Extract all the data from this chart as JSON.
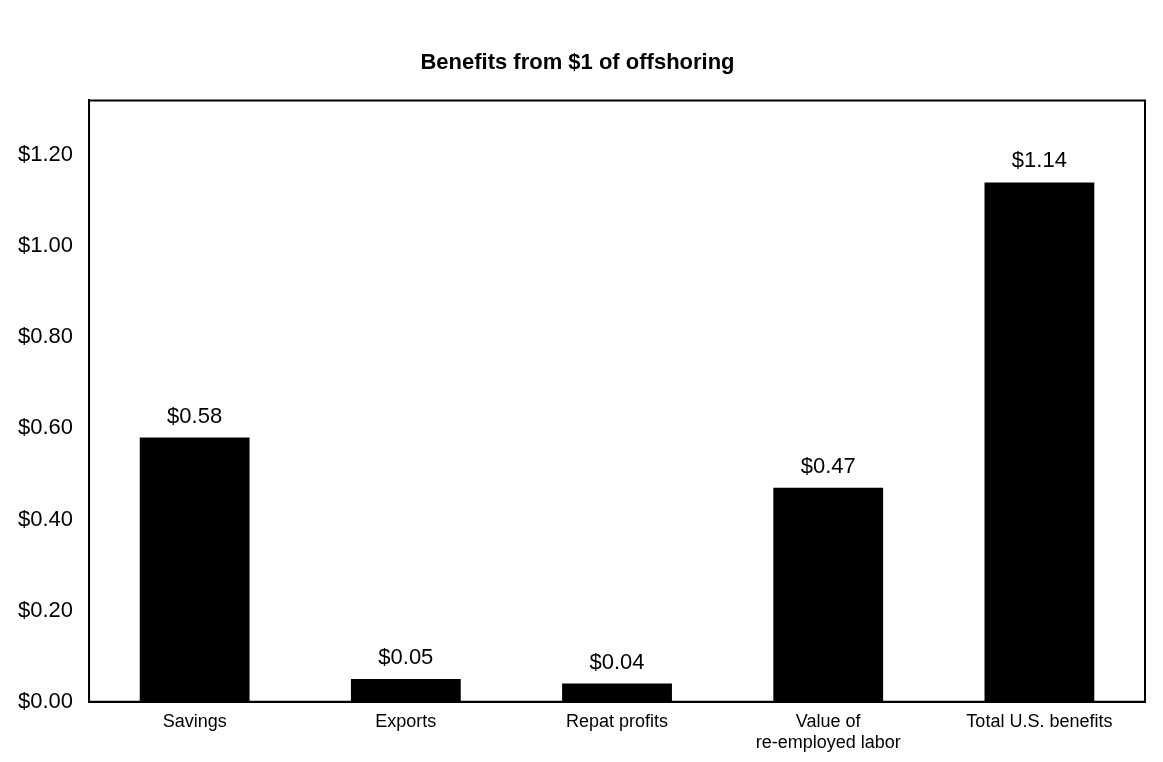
{
  "chart_data": {
    "type": "bar",
    "title": "Benefits from $1 of offshoring",
    "categories": [
      "Savings",
      "Exports",
      "Repat profits",
      "Value of re-employed labor",
      "Total U.S. benefits"
    ],
    "values": [
      0.58,
      0.05,
      0.04,
      0.47,
      1.14
    ],
    "color": "#000000",
    "value_labels": [
      "$0.58",
      "$0.05",
      "$0.04",
      "$0.47",
      "$1.14"
    ],
    "ylim": [
      0,
      1.32
    ],
    "yticks": [
      {
        "value": 0,
        "label": "$0.00"
      },
      {
        "value": 0.2,
        "label": "$0.20"
      },
      {
        "value": 0.4,
        "label": "$0.40"
      },
      {
        "value": 0.6,
        "label": "$0.60"
      },
      {
        "value": 0.8,
        "label": "$0.80"
      },
      {
        "value": 1,
        "label": "$1.00"
      },
      {
        "value": 1.2,
        "label": "$1.20"
      }
    ],
    "grid": false,
    "legend": false
  }
}
